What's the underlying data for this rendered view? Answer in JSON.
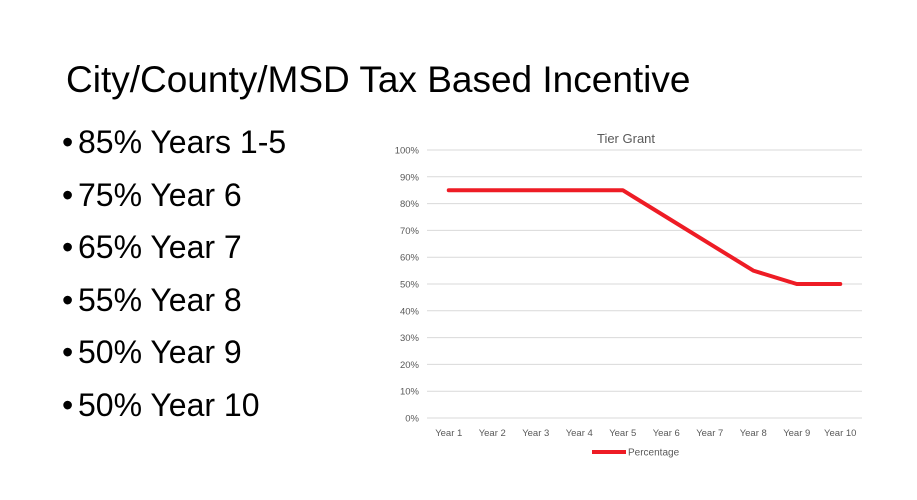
{
  "slide": {
    "title": "City/County/MSD Tax Based Incentive",
    "bullets": [
      "85% Years 1-5",
      "75% Year 6",
      "65% Year 7",
      "55% Year 8",
      "50% Year 9",
      "50% Year 10"
    ],
    "bullet_glyph": "•"
  },
  "chart_data": {
    "type": "line",
    "title": "Tier Grant",
    "categories": [
      "Year 1",
      "Year 2",
      "Year 3",
      "Year 4",
      "Year 5",
      "Year 6",
      "Year 7",
      "Year 8",
      "Year 9",
      "Year 10"
    ],
    "series": [
      {
        "name": "Percentage",
        "values": [
          85,
          85,
          85,
          85,
          85,
          75,
          65,
          55,
          50,
          50
        ],
        "color": "#ee1c25"
      }
    ],
    "ylim": [
      0,
      100
    ],
    "yticks": [
      "0%",
      "10%",
      "20%",
      "30%",
      "40%",
      "50%",
      "60%",
      "70%",
      "80%",
      "90%",
      "100%"
    ],
    "grid": true,
    "legend": "bottom",
    "gridline_color": "#d9d9d9",
    "text_color": "#595959"
  }
}
